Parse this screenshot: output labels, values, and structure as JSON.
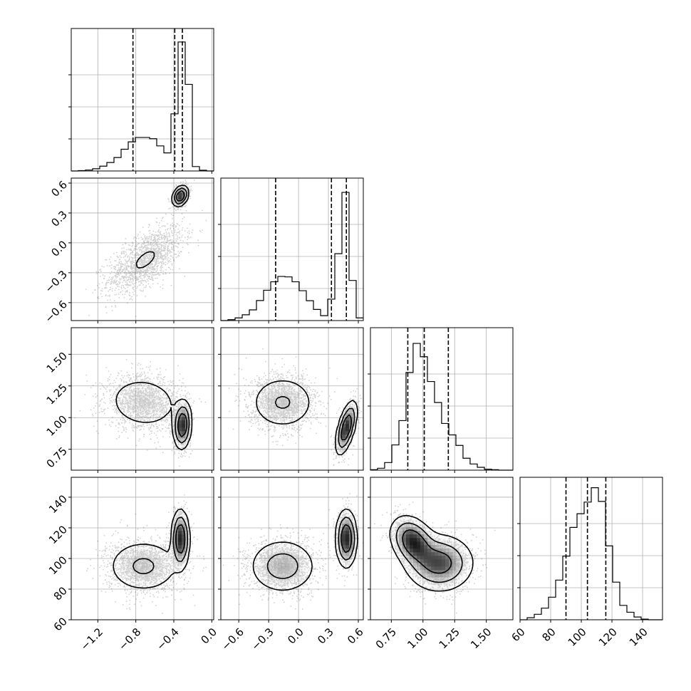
{
  "chart_data": {
    "type": "scatter",
    "kind": "corner_plot",
    "grid": true,
    "parameters": [
      {
        "range": [
          -1.48,
          0.02
        ],
        "ticks": [
          -1.2,
          -0.8,
          -0.4,
          0.0
        ],
        "tick_labels": [
          "−1.2",
          "−0.8",
          "−0.4",
          "0.0"
        ]
      },
      {
        "range": [
          -0.78,
          0.65
        ],
        "ticks": [
          -0.6,
          -0.3,
          0.0,
          0.3,
          0.6
        ],
        "tick_labels": [
          "−0.6",
          "−0.3",
          "0.0",
          "0.3",
          "0.6"
        ]
      },
      {
        "range": [
          0.585,
          1.71
        ],
        "ticks": [
          0.75,
          1.0,
          1.25,
          1.5
        ],
        "tick_labels": [
          "0.75",
          "1.00",
          "1.25",
          "1.50"
        ]
      },
      {
        "range": [
          60,
          153
        ],
        "ticks": [
          60,
          80,
          100,
          120,
          140
        ],
        "tick_labels": [
          "60",
          "80",
          "100",
          "120",
          "140"
        ]
      }
    ],
    "histograms": [
      {
        "param": 0,
        "bin_edges": [
          -1.48,
          -1.405,
          -1.33,
          -1.255,
          -1.18,
          -1.105,
          -1.03,
          -0.955,
          -0.88,
          -0.805,
          -0.73,
          -0.655,
          -0.58,
          -0.505,
          -0.43,
          -0.355,
          -0.28,
          -0.205,
          -0.13,
          -0.055,
          0.02
        ],
        "counts": [
          0,
          0.2,
          0.5,
          1.2,
          2.6,
          4.6,
          7.3,
          11.8,
          15.8,
          18.2,
          18.2,
          17.5,
          13.6,
          9.8,
          31,
          70,
          47,
          2.4,
          0.4,
          0
        ],
        "ymax": 75,
        "quantiles": [
          -0.83,
          -0.39,
          -0.31
        ]
      },
      {
        "param": 1,
        "bin_edges": [
          -0.78,
          -0.7085,
          -0.637,
          -0.5655,
          -0.494,
          -0.4225,
          -0.351,
          -0.2795,
          -0.208,
          -0.1365,
          -0.065,
          0.0065,
          0.078,
          0.1495,
          0.221,
          0.2925,
          0.364,
          0.4355,
          0.507,
          0.5785,
          0.65
        ],
        "counts": [
          0,
          0.4,
          1.2,
          2.6,
          4.8,
          9,
          13.6,
          17.4,
          19.8,
          19.6,
          17.4,
          13.4,
          8.9,
          5,
          2.2,
          9.6,
          30,
          57.5,
          18,
          1.2
        ],
        "ymax": 62,
        "quantiles": [
          -0.23,
          0.33,
          0.48
        ]
      },
      {
        "param": 2,
        "bin_edges": [
          0.585,
          0.641,
          0.697,
          0.754,
          0.81,
          0.866,
          0.922,
          0.979,
          1.035,
          1.091,
          1.147,
          1.204,
          1.26,
          1.316,
          1.372,
          1.429,
          1.485,
          1.541,
          1.597,
          1.654,
          1.71
        ],
        "counts": [
          0.1,
          0.4,
          1.6,
          5.3,
          10.4,
          20.5,
          26.6,
          23.8,
          18.6,
          14.2,
          9.8,
          7.4,
          5.2,
          2.5,
          1.3,
          0.6,
          0.2,
          0.1,
          0,
          0
        ],
        "ymax": 29,
        "quantiles": [
          0.88,
          1.01,
          1.2
        ]
      },
      {
        "param": 3,
        "bin_edges": [
          60,
          64.65,
          69.3,
          73.95,
          78.6,
          83.25,
          87.9,
          92.55,
          97.2,
          101.85,
          106.5,
          111.15,
          115.8,
          120.45,
          125.1,
          129.75,
          134.4,
          139.05,
          143.7,
          148.35,
          153
        ],
        "counts": [
          0,
          0.3,
          0.8,
          1.7,
          3.3,
          5.8,
          9.3,
          13.5,
          15.5,
          17.2,
          19.3,
          17.3,
          10.8,
          5.5,
          2.1,
          1.1,
          0.4,
          0.1,
          0,
          0
        ],
        "ymax": 20.2,
        "quantiles": [
          90,
          104,
          116
        ]
      }
    ],
    "joint_distributions": [
      {
        "x_param": 0,
        "y_param": 1,
        "modes": [
          {
            "weight": 0.6,
            "mean": [
              -0.7,
              -0.17
            ],
            "sd": [
              0.2,
              0.17
            ],
            "rho": 0.62
          },
          {
            "weight": 0.4,
            "mean": [
              -0.33,
              0.47
            ],
            "sd": [
              0.04,
              0.05
            ],
            "rho": 0.3
          }
        ]
      },
      {
        "x_param": 0,
        "y_param": 2,
        "modes": [
          {
            "weight": 0.6,
            "mean": [
              -0.72,
              1.12
            ],
            "sd": [
              0.2,
              0.11
            ],
            "rho": -0.1
          },
          {
            "weight": 0.4,
            "mean": [
              -0.31,
              0.94
            ],
            "sd": [
              0.045,
              0.09
            ],
            "rho": 0.1
          }
        ]
      },
      {
        "x_param": 0,
        "y_param": 3,
        "modes": [
          {
            "weight": 0.6,
            "mean": [
              -0.72,
              95
            ],
            "sd": [
              0.2,
              9
            ],
            "rho": 0
          },
          {
            "weight": 0.4,
            "mean": [
              -0.33,
              113
            ],
            "sd": [
              0.045,
              9
            ],
            "rho": 0
          }
        ]
      },
      {
        "x_param": 1,
        "y_param": 2,
        "modes": [
          {
            "weight": 0.6,
            "mean": [
              -0.16,
              1.12
            ],
            "sd": [
              0.17,
              0.11
            ],
            "rho": 0
          },
          {
            "weight": 0.4,
            "mean": [
              0.48,
              0.92
            ],
            "sd": [
              0.05,
              0.1
            ],
            "rho": 0.6
          }
        ]
      },
      {
        "x_param": 1,
        "y_param": 3,
        "modes": [
          {
            "weight": 0.6,
            "mean": [
              -0.16,
              95
            ],
            "sd": [
              0.17,
              9
            ],
            "rho": 0
          },
          {
            "weight": 0.4,
            "mean": [
              0.48,
              113
            ],
            "sd": [
              0.05,
              9
            ],
            "rho": 0
          }
        ]
      },
      {
        "x_param": 2,
        "y_param": 3,
        "modes": [
          {
            "weight": 0.4,
            "mean": [
              0.92,
              111
            ],
            "sd": [
              0.085,
              8
            ],
            "rho": -0.3
          },
          {
            "weight": 0.6,
            "mean": [
              1.13,
              97
            ],
            "sd": [
              0.13,
              9
            ],
            "rho": 0
          }
        ]
      }
    ]
  }
}
